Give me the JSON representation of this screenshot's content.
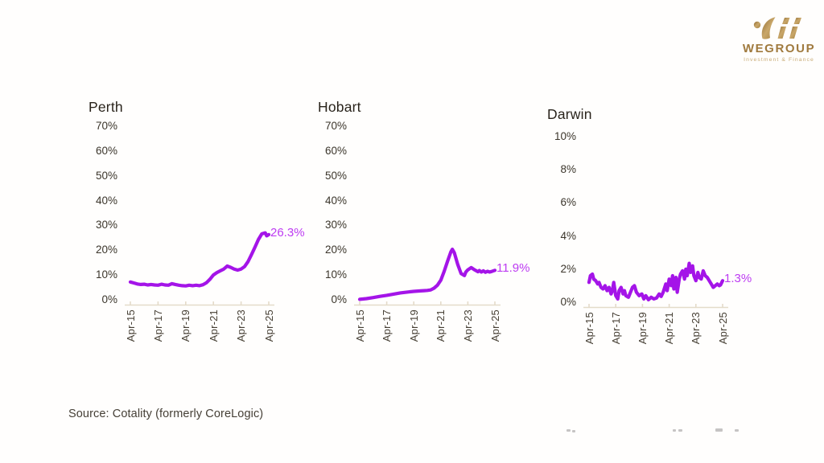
{
  "logo": {
    "brand": "WEGROUP",
    "tagline": "Investment & Finance"
  },
  "footer": {
    "source": "Source: Cotality (formerly CoreLogic)"
  },
  "colors": {
    "line": "#A414E8",
    "end_label": "#BD3BF2",
    "axis": "#E4DBCA",
    "title_text": "#29231B",
    "tick_text": "#3B352B",
    "logo_gold": "#A07A3E",
    "background": "#FFFFFF"
  },
  "chart_data": [
    {
      "type": "line",
      "title": "Perth",
      "xlabel": "",
      "ylabel": "",
      "ylim": [
        0,
        70
      ],
      "x_range": [
        2015.25,
        2025.25
      ],
      "grid": false,
      "legend": "none",
      "yticks": [
        "70%",
        "60%",
        "50%",
        "40%",
        "30%",
        "20%",
        "10%",
        "0%"
      ],
      "xticks": [
        "Apr-15",
        "Apr-17",
        "Apr-19",
        "Apr-21",
        "Apr-23",
        "Apr-25"
      ],
      "end_label": "26.3%",
      "series": [
        {
          "name": "Perth",
          "x": [
            2015.25,
            2015.5,
            2015.75,
            2016.0,
            2016.25,
            2016.5,
            2016.75,
            2017.0,
            2017.25,
            2017.5,
            2017.75,
            2018.0,
            2018.25,
            2018.5,
            2018.75,
            2019.0,
            2019.25,
            2019.5,
            2019.75,
            2020.0,
            2020.25,
            2020.5,
            2020.75,
            2021.0,
            2021.25,
            2021.5,
            2021.75,
            2022.0,
            2022.25,
            2022.5,
            2022.75,
            2023.0,
            2023.25,
            2023.5,
            2023.75,
            2024.0,
            2024.25,
            2024.5,
            2024.75,
            2025.0,
            2025.1,
            2025.25
          ],
          "values": [
            7.2,
            6.8,
            6.4,
            6.2,
            6.3,
            6.0,
            6.2,
            6.0,
            5.9,
            6.3,
            6.0,
            5.9,
            6.5,
            6.2,
            5.9,
            5.7,
            5.6,
            5.9,
            5.7,
            5.9,
            5.7,
            6.1,
            6.9,
            8.3,
            10.0,
            11.0,
            11.7,
            12.4,
            13.6,
            13.1,
            12.4,
            12.0,
            12.4,
            13.4,
            15.4,
            18.2,
            21.2,
            24.3,
            26.6,
            27.0,
            25.8,
            26.3
          ]
        }
      ]
    },
    {
      "type": "line",
      "title": "Hobart",
      "xlabel": "",
      "ylabel": "",
      "ylim": [
        0,
        70
      ],
      "x_range": [
        2015.25,
        2025.25
      ],
      "grid": false,
      "legend": "none",
      "yticks": [
        "70%",
        "60%",
        "50%",
        "40%",
        "30%",
        "20%",
        "10%",
        "0%"
      ],
      "xticks": [
        "Apr-15",
        "Apr-17",
        "Apr-19",
        "Apr-21",
        "Apr-23",
        "Apr-25"
      ],
      "end_label": "11.9%",
      "series": [
        {
          "name": "Hobart",
          "x": [
            2015.25,
            2015.75,
            2016.25,
            2016.75,
            2017.25,
            2017.75,
            2018.25,
            2018.75,
            2019.25,
            2019.75,
            2020.0,
            2020.25,
            2020.5,
            2020.75,
            2021.0,
            2021.25,
            2021.5,
            2021.75,
            2022.0,
            2022.1,
            2022.25,
            2022.5,
            2022.75,
            2023.0,
            2023.1,
            2023.25,
            2023.5,
            2023.75,
            2024.0,
            2024.1,
            2024.25,
            2024.4,
            2024.55,
            2024.7,
            2024.85,
            2025.0,
            2025.1,
            2025.25
          ],
          "values": [
            0.2,
            0.5,
            0.9,
            1.4,
            1.8,
            2.3,
            2.8,
            3.1,
            3.4,
            3.6,
            3.7,
            3.8,
            4.0,
            4.7,
            5.9,
            7.9,
            11.5,
            15.6,
            19.4,
            20.4,
            19.0,
            14.3,
            10.6,
            9.8,
            11.2,
            12.1,
            13.0,
            12.1,
            11.3,
            11.8,
            11.2,
            11.7,
            11.1,
            11.5,
            11.2,
            11.4,
            11.6,
            11.9
          ]
        }
      ]
    },
    {
      "type": "line",
      "title": "Darwin",
      "xlabel": "",
      "ylabel": "",
      "ylim": [
        0,
        10
      ],
      "x_range": [
        2015.25,
        2025.25
      ],
      "grid": false,
      "legend": "none",
      "yticks": [
        "10%",
        "8%",
        "6%",
        "4%",
        "2%",
        "0%"
      ],
      "xticks": [
        "Apr-15",
        "Apr-17",
        "Apr-19",
        "Apr-21",
        "Apr-23",
        "Apr-25"
      ],
      "end_label": "1.3%",
      "series": [
        {
          "name": "Darwin",
          "x": [
            2015.25,
            2015.35,
            2015.5,
            2015.6,
            2015.75,
            2015.9,
            2016.0,
            2016.15,
            2016.3,
            2016.45,
            2016.6,
            2016.75,
            2016.9,
            2017.0,
            2017.1,
            2017.25,
            2017.4,
            2017.5,
            2017.65,
            2017.8,
            2017.9,
            2018.0,
            2018.2,
            2018.35,
            2018.5,
            2018.65,
            2018.8,
            2019.0,
            2019.2,
            2019.35,
            2019.5,
            2019.7,
            2019.9,
            2020.1,
            2020.3,
            2020.5,
            2020.65,
            2020.8,
            2021.0,
            2021.1,
            2021.25,
            2021.4,
            2021.5,
            2021.6,
            2021.75,
            2021.85,
            2022.0,
            2022.1,
            2022.25,
            2022.4,
            2022.5,
            2022.6,
            2022.75,
            2022.85,
            2023.0,
            2023.1,
            2023.25,
            2023.4,
            2023.5,
            2023.65,
            2023.8,
            2023.95,
            2024.1,
            2024.25,
            2024.4,
            2024.55,
            2024.7,
            2024.85,
            2025.0,
            2025.1,
            2025.25
          ],
          "values": [
            1.2,
            1.6,
            1.7,
            1.4,
            1.3,
            1.1,
            1.2,
            0.9,
            0.8,
            1.0,
            0.7,
            0.9,
            0.5,
            0.7,
            1.2,
            0.4,
            0.2,
            0.7,
            0.9,
            0.5,
            0.7,
            0.4,
            0.3,
            0.6,
            0.9,
            1.0,
            0.6,
            0.4,
            0.5,
            0.2,
            0.4,
            0.15,
            0.3,
            0.2,
            0.25,
            0.5,
            0.35,
            0.6,
            1.1,
            0.7,
            1.4,
            1.0,
            1.6,
            0.8,
            1.5,
            0.6,
            1.4,
            1.7,
            1.9,
            1.4,
            2.0,
            1.6,
            2.35,
            1.8,
            2.2,
            1.6,
            1.3,
            1.8,
            1.5,
            1.4,
            1.9,
            1.6,
            1.5,
            1.3,
            1.1,
            0.9,
            1.0,
            1.1,
            1.0,
            1.05,
            1.3
          ]
        }
      ]
    }
  ]
}
